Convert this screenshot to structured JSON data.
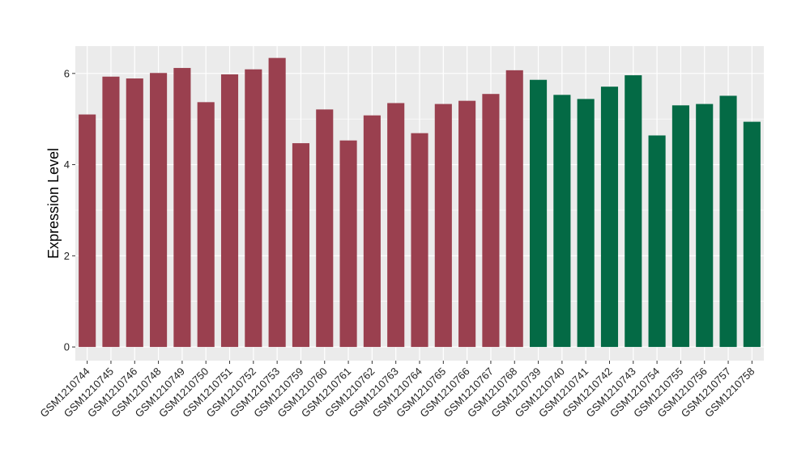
{
  "chart_data": {
    "type": "bar",
    "ylabel": "Expression Level",
    "xlabel": "",
    "ylim": [
      -0.3,
      6.6
    ],
    "yticks": [
      0,
      2,
      4,
      6
    ],
    "grid": true,
    "panel_background": "#ebebeb",
    "grid_color": "#ffffff",
    "categories": [
      "GSM1210744",
      "GSM1210745",
      "GSM1210746",
      "GSM1210748",
      "GSM1210749",
      "GSM1210750",
      "GSM1210751",
      "GSM1210752",
      "GSM1210753",
      "GSM1210759",
      "GSM1210760",
      "GSM1210761",
      "GSM1210762",
      "GSM1210763",
      "GSM1210764",
      "GSM1210765",
      "GSM1210766",
      "GSM1210767",
      "GSM1210768",
      "GSM1210739",
      "GSM1210740",
      "GSM1210741",
      "GSM1210742",
      "GSM1210743",
      "GSM1210754",
      "GSM1210755",
      "GSM1210756",
      "GSM1210757",
      "GSM1210758"
    ],
    "values": [
      5.1,
      5.93,
      5.89,
      6.01,
      6.12,
      5.37,
      5.98,
      6.09,
      6.34,
      4.47,
      5.21,
      4.53,
      5.08,
      5.35,
      4.69,
      5.33,
      5.4,
      5.55,
      6.07,
      5.86,
      5.53,
      5.44,
      5.71,
      5.96,
      4.64,
      5.3,
      5.33,
      5.51,
      4.94
    ],
    "bar_colors": [
      "#9a404f",
      "#9a404f",
      "#9a404f",
      "#9a404f",
      "#9a404f",
      "#9a404f",
      "#9a404f",
      "#9a404f",
      "#9a404f",
      "#9a404f",
      "#9a404f",
      "#9a404f",
      "#9a404f",
      "#9a404f",
      "#9a404f",
      "#9a404f",
      "#9a404f",
      "#9a404f",
      "#9a404f",
      "#046a45",
      "#046a45",
      "#046a45",
      "#046a45",
      "#046a45",
      "#046a45",
      "#046a45",
      "#046a45",
      "#046a45",
      "#046a45"
    ]
  }
}
